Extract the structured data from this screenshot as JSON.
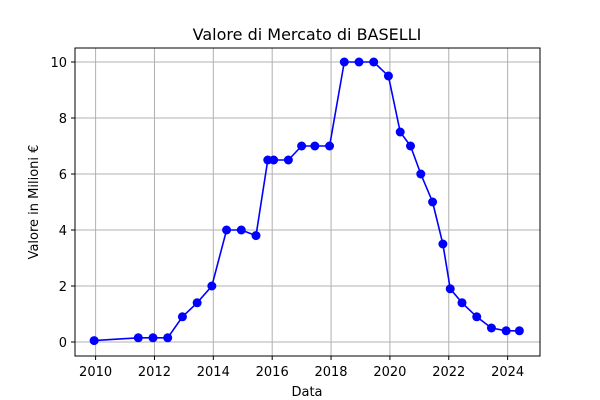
{
  "chart_data": {
    "type": "line",
    "title": "Valore di Mercato di BASELLI",
    "xlabel": "Data",
    "ylabel": "Valore in Milioni €",
    "xlim": [
      2009.3,
      2025.1
    ],
    "ylim": [
      -0.5,
      10.5
    ],
    "xticks": [
      2010,
      2012,
      2014,
      2016,
      2018,
      2020,
      2022,
      2024
    ],
    "yticks": [
      0,
      2,
      4,
      6,
      8,
      10
    ],
    "grid": true,
    "color": "#0000ff",
    "series": [
      {
        "x": [
          2009.95,
          2011.45,
          2011.95,
          2012.45,
          2012.95,
          2013.45,
          2013.95,
          2014.45,
          2014.95,
          2015.45,
          2015.85,
          2016.05,
          2016.55,
          2017.0,
          2017.45,
          2017.95,
          2018.45,
          2018.95,
          2019.45,
          2019.95,
          2020.35,
          2020.7,
          2021.05,
          2021.45,
          2021.8,
          2022.05,
          2022.45,
          2022.95,
          2023.45,
          2023.95,
          2024.4
        ],
        "y": [
          0.05,
          0.15,
          0.15,
          0.15,
          0.9,
          1.4,
          2.0,
          4.0,
          4.0,
          3.8,
          6.5,
          6.5,
          6.5,
          7.0,
          7.0,
          7.0,
          10.0,
          10.0,
          10.0,
          9.5,
          7.5,
          7.0,
          6.0,
          5.0,
          3.5,
          1.9,
          1.4,
          0.9,
          0.5,
          0.4,
          0.4
        ]
      }
    ]
  }
}
